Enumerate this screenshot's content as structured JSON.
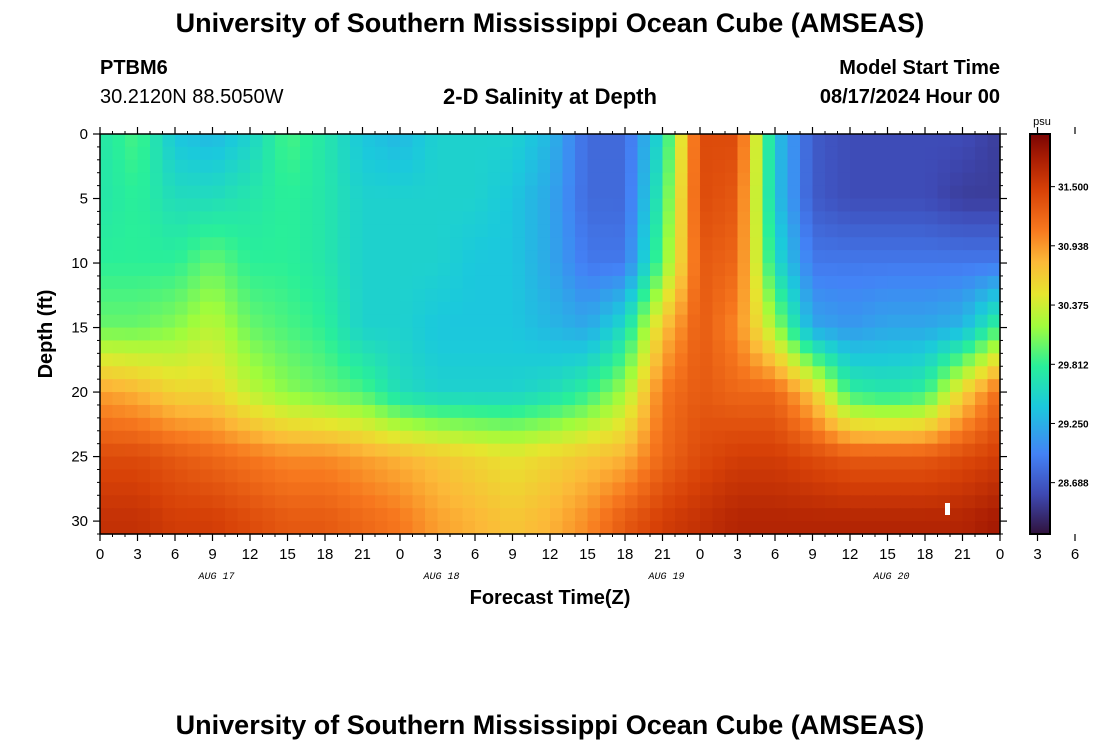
{
  "page": {
    "title_top": "University of Southern Mississippi Ocean Cube (AMSEAS)",
    "title_bottom": "University of Southern Mississippi Ocean Cube (AMSEAS)",
    "station": "PTBM6",
    "coords": "30.2120N  88.5050W",
    "subtitle": "2-D Salinity at Depth",
    "model_start_label": "Model Start Time",
    "model_start_value": "08/17/2024 Hour 00"
  },
  "chart_data": {
    "type": "heatmap",
    "title": "2-D Salinity at Depth",
    "xlabel": "Forecast Time(Z)",
    "ylabel": "Depth (ft)",
    "colorbar_unit": "psu",
    "colorbar_ticks": [
      "31.500",
      "30.938",
      "30.375",
      "29.812",
      "29.250",
      "28.688"
    ],
    "colorbar_tick_values": [
      31.5,
      30.938,
      30.375,
      29.812,
      29.25,
      28.688
    ],
    "value_range": [
      28.2,
      32.0
    ],
    "x_range_hours": [
      0,
      72
    ],
    "y_range_ft": [
      0,
      31
    ],
    "x_tick_labels": [
      "0",
      "3",
      "6",
      "9",
      "12",
      "15",
      "18",
      "21",
      "0",
      "3",
      "6",
      "9",
      "12",
      "15",
      "18",
      "21",
      "0",
      "3",
      "6",
      "9",
      "12",
      "15",
      "18",
      "21",
      "0",
      "3",
      "6",
      "9",
      "12",
      "15",
      "18",
      "21",
      "0"
    ],
    "y_tick_labels": [
      "0",
      "5",
      "10",
      "15",
      "20",
      "25",
      "30"
    ],
    "y_tick_values": [
      0,
      5,
      10,
      15,
      20,
      25,
      30
    ],
    "day_labels": [
      {
        "text": "AUG 17",
        "hour": 9
      },
      {
        "text": "AUG 18",
        "hour": 27
      },
      {
        "text": "AUG 19",
        "hour": 45
      },
      {
        "text": "AUG 20",
        "hour": 63
      }
    ],
    "time_hours": [
      0,
      3,
      6,
      9,
      12,
      15,
      18,
      21,
      24,
      27,
      30,
      33,
      36,
      39,
      42,
      45,
      48,
      51,
      54,
      57,
      60,
      63,
      66,
      69,
      72
    ],
    "depth_ft": [
      0,
      5,
      10,
      15,
      20,
      25,
      30
    ],
    "salinity_psu": [
      [
        29.7,
        29.9,
        29.4,
        29.3,
        29.5,
        29.9,
        29.7,
        29.4,
        29.3,
        29.5,
        29.5,
        29.5,
        29.3,
        28.8,
        28.8,
        29.6,
        31.4,
        31.4,
        29.4,
        28.7,
        28.6,
        28.6,
        28.6,
        28.6,
        28.5
      ],
      [
        29.7,
        29.8,
        29.6,
        29.6,
        29.7,
        29.8,
        29.7,
        29.5,
        29.5,
        29.5,
        29.5,
        29.4,
        29.2,
        28.8,
        28.8,
        29.8,
        31.4,
        31.3,
        29.4,
        28.7,
        28.6,
        28.6,
        28.6,
        28.5,
        28.5
      ],
      [
        29.8,
        29.8,
        29.8,
        30.0,
        29.8,
        29.8,
        29.7,
        29.5,
        29.5,
        29.5,
        29.4,
        29.4,
        29.2,
        28.9,
        28.9,
        30.0,
        31.3,
        31.2,
        29.6,
        28.9,
        28.9,
        28.9,
        28.9,
        28.9,
        28.9
      ],
      [
        30.0,
        30.0,
        30.1,
        30.3,
        30.0,
        29.9,
        29.8,
        29.5,
        29.5,
        29.4,
        29.4,
        29.4,
        29.3,
        29.2,
        29.6,
        30.7,
        31.3,
        31.0,
        30.2,
        29.2,
        29.1,
        29.2,
        29.2,
        29.3,
        29.9
      ],
      [
        30.9,
        30.8,
        30.6,
        30.6,
        30.3,
        30.1,
        30.0,
        29.9,
        29.6,
        29.5,
        29.5,
        29.5,
        29.6,
        29.8,
        30.2,
        31.1,
        31.3,
        31.2,
        31.2,
        30.7,
        29.8,
        29.7,
        29.8,
        30.6,
        31.2
      ],
      [
        31.4,
        31.4,
        31.3,
        31.2,
        31.1,
        31.0,
        31.0,
        30.9,
        30.8,
        30.7,
        30.6,
        30.5,
        30.6,
        30.7,
        30.8,
        31.2,
        31.4,
        31.5,
        31.5,
        31.4,
        31.3,
        31.3,
        31.3,
        31.4,
        31.5
      ],
      [
        31.6,
        31.6,
        31.5,
        31.5,
        31.4,
        31.3,
        31.3,
        31.2,
        31.1,
        30.9,
        30.8,
        30.7,
        30.8,
        31.0,
        31.3,
        31.5,
        31.6,
        31.7,
        31.7,
        31.7,
        31.7,
        31.7,
        31.7,
        31.7,
        31.8
      ]
    ]
  }
}
